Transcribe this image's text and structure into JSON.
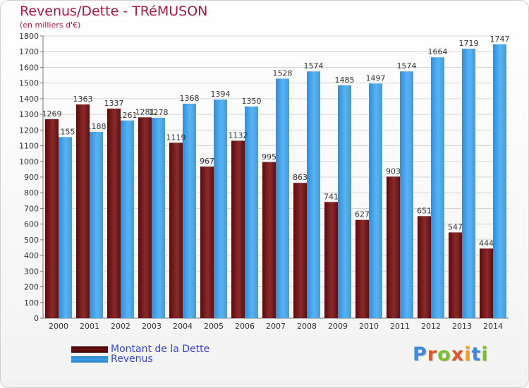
{
  "title": "Revenus/Dette - TRéMUSON",
  "subtitle": "(en milliers d'€)",
  "logo": {
    "letters": [
      "P",
      "r",
      "o",
      "x",
      "i",
      "t",
      "i"
    ],
    "colors": [
      "#3b8be0",
      "#e0572b",
      "#7bbd2f",
      "#e0572b",
      "#f0a020",
      "#3b8be0",
      "#7bbd2f"
    ]
  },
  "colors": {
    "dette": "#6b1010",
    "revenus": "#3a9de6",
    "title": "#b0173e",
    "legend_text": "#3344dd"
  },
  "chart_data": {
    "type": "bar",
    "categories": [
      "2000",
      "2001",
      "2002",
      "2003",
      "2004",
      "2005",
      "2006",
      "2007",
      "2008",
      "2009",
      "2010",
      "2011",
      "2012",
      "2013",
      "2014"
    ],
    "series": [
      {
        "name": "Montant de la Dette",
        "values": [
          1269,
          1363,
          1337,
          1281,
          1119,
          967,
          1132,
          995,
          863,
          741,
          627,
          903,
          651,
          547,
          444
        ],
        "labels": [
          "1269",
          "1363",
          "1337",
          "1281",
          "1119",
          "967",
          "1132",
          "995",
          "863",
          "741",
          "627",
          "903",
          "651",
          "547",
          "444"
        ]
      },
      {
        "name": "Revenus",
        "values": [
          1155,
          1188,
          1261,
          1278,
          1368,
          1394,
          1350,
          1528,
          1574,
          1485,
          1497,
          1574,
          1664,
          1719,
          1747
        ],
        "labels": [
          "1155",
          "1188",
          "1261",
          "1278",
          "1368",
          "1394",
          "1350",
          "1528",
          "1574",
          "1485",
          "1497",
          "1574",
          "1664",
          "1719",
          "1747"
        ]
      }
    ],
    "yticks": [
      "0",
      "100",
      "200",
      "300",
      "400",
      "500",
      "600",
      "700",
      "800",
      "900",
      "1000",
      "1100",
      "1200",
      "1300",
      "1400",
      "1500",
      "1600",
      "1700",
      "1800"
    ],
    "ylim": [
      0,
      1800
    ],
    "grid": true,
    "legend_position": "bottom-left"
  }
}
